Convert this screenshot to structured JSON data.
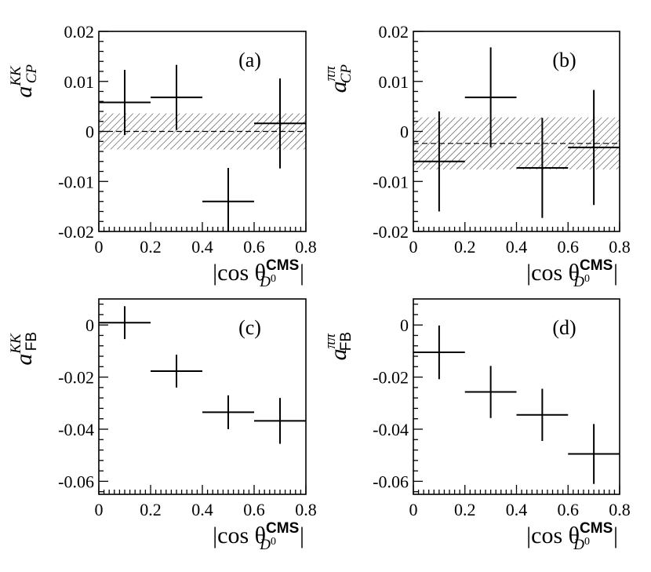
{
  "chart_data": [
    {
      "id": "a",
      "type": "scatter",
      "panel_label": "(a)",
      "ylabel": {
        "base": "a",
        "sup": "KK",
        "sub": "CP"
      },
      "xlabel": {
        "text": "|cos θ",
        "sup": "CMS",
        "sub": "D",
        "subsub": "0",
        "close": "|"
      },
      "xlim": [
        0,
        0.8
      ],
      "ylim": [
        -0.02,
        0.02
      ],
      "xticks": [
        "0",
        "0.2",
        "0.4",
        "0.6",
        "0.8"
      ],
      "yticks": [
        "-0.02",
        "-0.01",
        "0",
        "0.01",
        "0.02"
      ],
      "xtick_values": [
        0,
        0.2,
        0.4,
        0.6,
        0.8
      ],
      "ytick_values": [
        -0.02,
        -0.01,
        0,
        0.01,
        0.02
      ],
      "points": [
        {
          "x": 0.1,
          "xerr": 0.1,
          "y": 0.0058,
          "yerr": 0.0065
        },
        {
          "x": 0.3,
          "xerr": 0.1,
          "y": 0.0068,
          "yerr": 0.0065
        },
        {
          "x": 0.5,
          "xerr": 0.1,
          "y": -0.014,
          "yerr": 0.0067
        },
        {
          "x": 0.7,
          "xerr": 0.1,
          "y": 0.0016,
          "yerr": 0.009
        }
      ],
      "average": {
        "value": 0.0,
        "error": 0.0036
      }
    },
    {
      "id": "b",
      "type": "scatter",
      "panel_label": "(b)",
      "ylabel": {
        "base": "a",
        "sup": "ππ",
        "sub": "CP"
      },
      "xlabel": {
        "text": "|cos θ",
        "sup": "CMS",
        "sub": "D",
        "subsub": "0",
        "close": "|"
      },
      "xlim": [
        0,
        0.8
      ],
      "ylim": [
        -0.02,
        0.02
      ],
      "xticks": [
        "0",
        "0.2",
        "0.4",
        "0.6",
        "0.8"
      ],
      "yticks": [
        "-0.02",
        "-0.01",
        "0",
        "0.01",
        "0.02"
      ],
      "xtick_values": [
        0,
        0.2,
        0.4,
        0.6,
        0.8
      ],
      "ytick_values": [
        -0.02,
        -0.01,
        0,
        0.01,
        0.02
      ],
      "points": [
        {
          "x": 0.1,
          "xerr": 0.1,
          "y": -0.006,
          "yerr": 0.01
        },
        {
          "x": 0.3,
          "xerr": 0.1,
          "y": 0.0068,
          "yerr": 0.01
        },
        {
          "x": 0.5,
          "xerr": 0.1,
          "y": -0.0073,
          "yerr": 0.01
        },
        {
          "x": 0.7,
          "xerr": 0.1,
          "y": -0.0032,
          "yerr": 0.0115
        }
      ],
      "average": {
        "value": -0.0024,
        "error": 0.0052
      }
    },
    {
      "id": "c",
      "type": "scatter",
      "panel_label": "(c)",
      "ylabel": {
        "base": "a",
        "sup": "KK",
        "sub": "FB"
      },
      "xlabel": {
        "text": "|cos θ",
        "sup": "CMS",
        "sub": "D",
        "subsub": "0",
        "close": "|"
      },
      "xlim": [
        0,
        0.8
      ],
      "ylim": [
        -0.065,
        0.01
      ],
      "xticks": [
        "0",
        "0.2",
        "0.4",
        "0.6",
        "0.8"
      ],
      "yticks": [
        "-0.06",
        "-0.04",
        "-0.02",
        "0"
      ],
      "xtick_values": [
        0,
        0.2,
        0.4,
        0.6,
        0.8
      ],
      "ytick_values": [
        -0.06,
        -0.04,
        -0.02,
        0
      ],
      "points": [
        {
          "x": 0.1,
          "xerr": 0.1,
          "y": 0.0009,
          "yerr": 0.0063
        },
        {
          "x": 0.3,
          "xerr": 0.1,
          "y": -0.0177,
          "yerr": 0.0063
        },
        {
          "x": 0.5,
          "xerr": 0.1,
          "y": -0.0335,
          "yerr": 0.0065
        },
        {
          "x": 0.7,
          "xerr": 0.1,
          "y": -0.0368,
          "yerr": 0.0088
        }
      ]
    },
    {
      "id": "d",
      "type": "scatter",
      "panel_label": "(d)",
      "ylabel": {
        "base": "a",
        "sup": "ππ",
        "sub": "FB"
      },
      "xlabel": {
        "text": "|cos θ",
        "sup": "CMS",
        "sub": "D",
        "subsub": "0",
        "close": "|"
      },
      "xlim": [
        0,
        0.8
      ],
      "ylim": [
        -0.065,
        0.01
      ],
      "xticks": [
        "0",
        "0.2",
        "0.4",
        "0.6",
        "0.8"
      ],
      "yticks": [
        "-0.06",
        "-0.04",
        "-0.02",
        "0"
      ],
      "xtick_values": [
        0,
        0.2,
        0.4,
        0.6,
        0.8
      ],
      "ytick_values": [
        -0.06,
        -0.04,
        -0.02,
        0
      ],
      "points": [
        {
          "x": 0.1,
          "xerr": 0.1,
          "y": -0.0105,
          "yerr": 0.0103
        },
        {
          "x": 0.3,
          "xerr": 0.1,
          "y": -0.0257,
          "yerr": 0.01
        },
        {
          "x": 0.5,
          "xerr": 0.1,
          "y": -0.0345,
          "yerr": 0.01
        },
        {
          "x": 0.7,
          "xerr": 0.1,
          "y": -0.0495,
          "yerr": 0.0115
        }
      ]
    }
  ]
}
